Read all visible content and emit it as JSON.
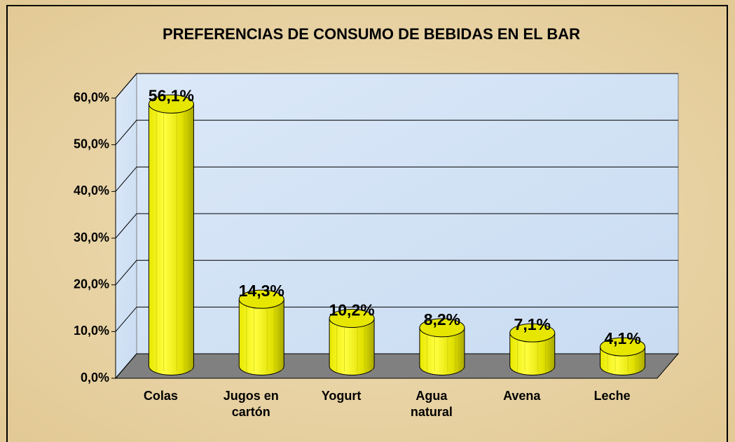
{
  "chart_data": {
    "type": "bar3d",
    "title": "PREFERENCIAS DE CONSUMO DE BEBIDAS EN EL BAR",
    "categories": [
      "Colas",
      "Jugos en cartón",
      "Yogurt",
      "Agua natural",
      "Avena",
      "Leche"
    ],
    "values": [
      56.1,
      14.3,
      10.2,
      8.2,
      7.1,
      4.1
    ],
    "value_labels": [
      "56,1%",
      "14,3%",
      "10,2%",
      "8,2%",
      "7,1%",
      "4,1%"
    ],
    "color": "#ffff00",
    "ylim": [
      0,
      60
    ],
    "yticks": [
      {
        "value": 0,
        "label": "0,0%"
      },
      {
        "value": 10,
        "label": "10,0%"
      },
      {
        "value": 20,
        "label": "20,0%"
      },
      {
        "value": 30,
        "label": "30,0%"
      },
      {
        "value": 40,
        "label": "40,0%"
      },
      {
        "value": 50,
        "label": "50,0%"
      },
      {
        "value": 60,
        "label": "60,0%"
      }
    ],
    "grid": true
  }
}
